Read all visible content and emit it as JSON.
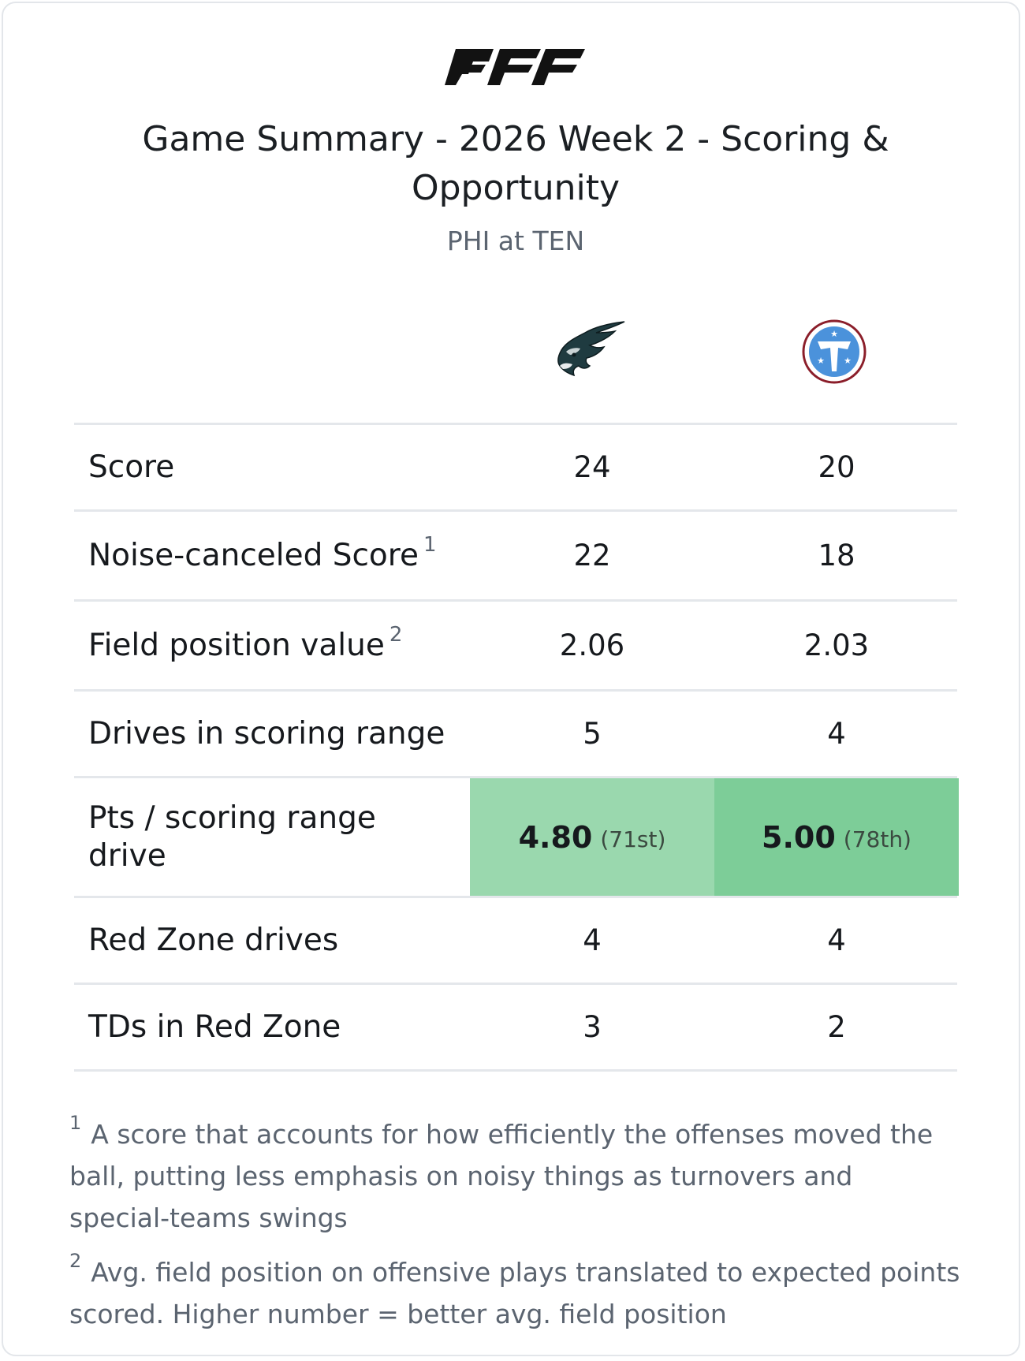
{
  "brand": {
    "logo_text": "PFF"
  },
  "title": "Game Summary - 2026 Week 2 - Scoring & Opportunity",
  "subtitle": "PHI at TEN",
  "teams": {
    "away": {
      "abbr": "PHI",
      "logo_icon": "eagle-head-icon",
      "color": "#004c54"
    },
    "home": {
      "abbr": "TEN",
      "logo_icon": "titans-t-logo-icon",
      "color": "#4b92db",
      "ring_color": "#8b1e2a"
    }
  },
  "rows": [
    {
      "label": "Score",
      "footnote": "",
      "away": "24",
      "home": "20"
    },
    {
      "label": "Noise-canceled Score",
      "footnote": "1",
      "away": "22",
      "home": "18"
    },
    {
      "label": "Field position value",
      "footnote": "2",
      "away": "2.06",
      "home": "2.03"
    },
    {
      "label": "Drives in scoring range",
      "footnote": "",
      "away": "5",
      "home": "4"
    },
    {
      "label": "Pts / scoring range drive",
      "footnote": "",
      "away": "4.80",
      "away_rank": "(71st)",
      "home": "5.00",
      "home_rank": "(78th)",
      "away_color": "#9ad8ae",
      "home_color": "#7dcd98"
    },
    {
      "label": "Red Zone drives",
      "footnote": "",
      "away": "4",
      "home": "4"
    },
    {
      "label": "TDs in Red Zone",
      "footnote": "",
      "away": "3",
      "home": "2"
    }
  ],
  "footnotes": [
    {
      "marker": "1",
      "text": "A score that accounts for how efficiently the offenses moved the ball, putting less emphasis on noisy things as turnovers and special-teams swings"
    },
    {
      "marker": "2",
      "text": "Avg. field position on offensive plays translated to expected points scored. Higher number = better avg. field position"
    }
  ]
}
